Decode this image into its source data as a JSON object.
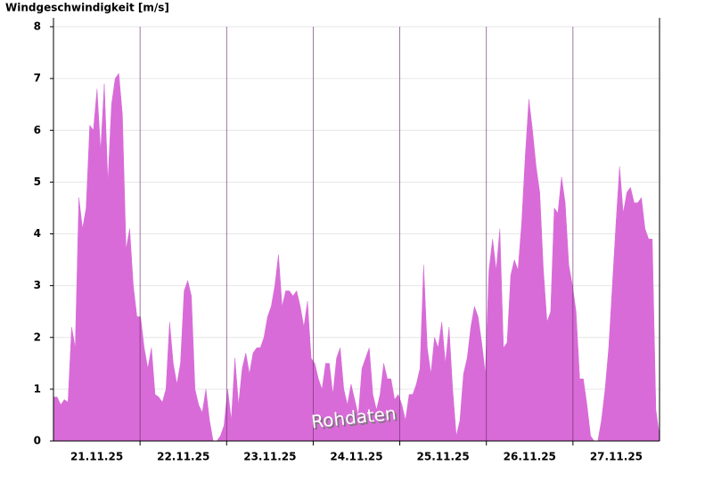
{
  "chart_data": {
    "type": "area",
    "ylabel": "Windgeschwindigkeit [m/s]",
    "annotation": "Rohdaten",
    "color": "#d86bd8",
    "grid": true,
    "xlim": [
      0,
      168
    ],
    "xticks": [
      {
        "value": 12,
        "label": "21.11.25"
      },
      {
        "value": 36,
        "label": "22.11.25"
      },
      {
        "value": 60,
        "label": "23.11.25"
      },
      {
        "value": 84,
        "label": "24.11.25"
      },
      {
        "value": 108,
        "label": "25.11.25"
      },
      {
        "value": 132,
        "label": "26.11.25"
      },
      {
        "value": 156,
        "label": "27.11.25"
      }
    ],
    "day_lines": [
      24,
      48,
      72,
      96,
      120,
      144
    ],
    "ylim": [
      0,
      8
    ],
    "yticks": [
      0,
      1,
      2,
      3,
      4,
      5,
      6,
      7,
      8
    ],
    "values": [
      0.85,
      0.85,
      0.7,
      0.8,
      0.75,
      2.2,
      1.8,
      4.7,
      4.1,
      4.5,
      6.1,
      6.0,
      6.8,
      5.6,
      6.9,
      5.0,
      6.5,
      7.0,
      7.1,
      6.3,
      3.7,
      4.1,
      3.0,
      2.4,
      2.4,
      1.8,
      1.4,
      1.8,
      0.9,
      0.85,
      0.75,
      1.0,
      2.3,
      1.5,
      1.1,
      1.5,
      2.9,
      3.1,
      2.8,
      1.0,
      0.7,
      0.55,
      1.0,
      0.4,
      0,
      0,
      0.1,
      0.3,
      1.0,
      0.4,
      1.6,
      0.7,
      1.4,
      1.7,
      1.3,
      1.7,
      1.8,
      1.8,
      2.0,
      2.4,
      2.6,
      3.0,
      3.6,
      2.6,
      2.9,
      2.9,
      2.8,
      2.9,
      2.6,
      2.2,
      2.7,
      1.6,
      1.5,
      1.2,
      1.0,
      1.5,
      1.5,
      0.9,
      1.6,
      1.8,
      1.0,
      0.7,
      1.1,
      0.8,
      0.5,
      1.4,
      1.6,
      1.8,
      0.9,
      0.6,
      0.9,
      1.5,
      1.2,
      1.2,
      0.8,
      0.9,
      0.7,
      0.4,
      0.9,
      0.9,
      1.1,
      1.4,
      3.4,
      1.8,
      1.3,
      2.0,
      1.8,
      2.3,
      1.5,
      2.2,
      1.0,
      0.1,
      0.4,
      1.3,
      1.6,
      2.2,
      2.6,
      2.4,
      1.9,
      1.3,
      3.3,
      3.9,
      3.3,
      4.1,
      1.8,
      1.9,
      3.2,
      3.5,
      3.3,
      4.2,
      5.5,
      6.6,
      6.0,
      5.3,
      4.8,
      3.3,
      2.3,
      2.5,
      4.5,
      4.4,
      5.1,
      4.6,
      3.4,
      3.0,
      2.5,
      1.2,
      1.2,
      0.7,
      0.1,
      0,
      0,
      0.4,
      1.0,
      1.8,
      3.0,
      4.2,
      5.3,
      4.4,
      4.8,
      4.9,
      4.6,
      4.6,
      4.7,
      4.1,
      3.9,
      3.9,
      0.6,
      0.1
    ]
  }
}
